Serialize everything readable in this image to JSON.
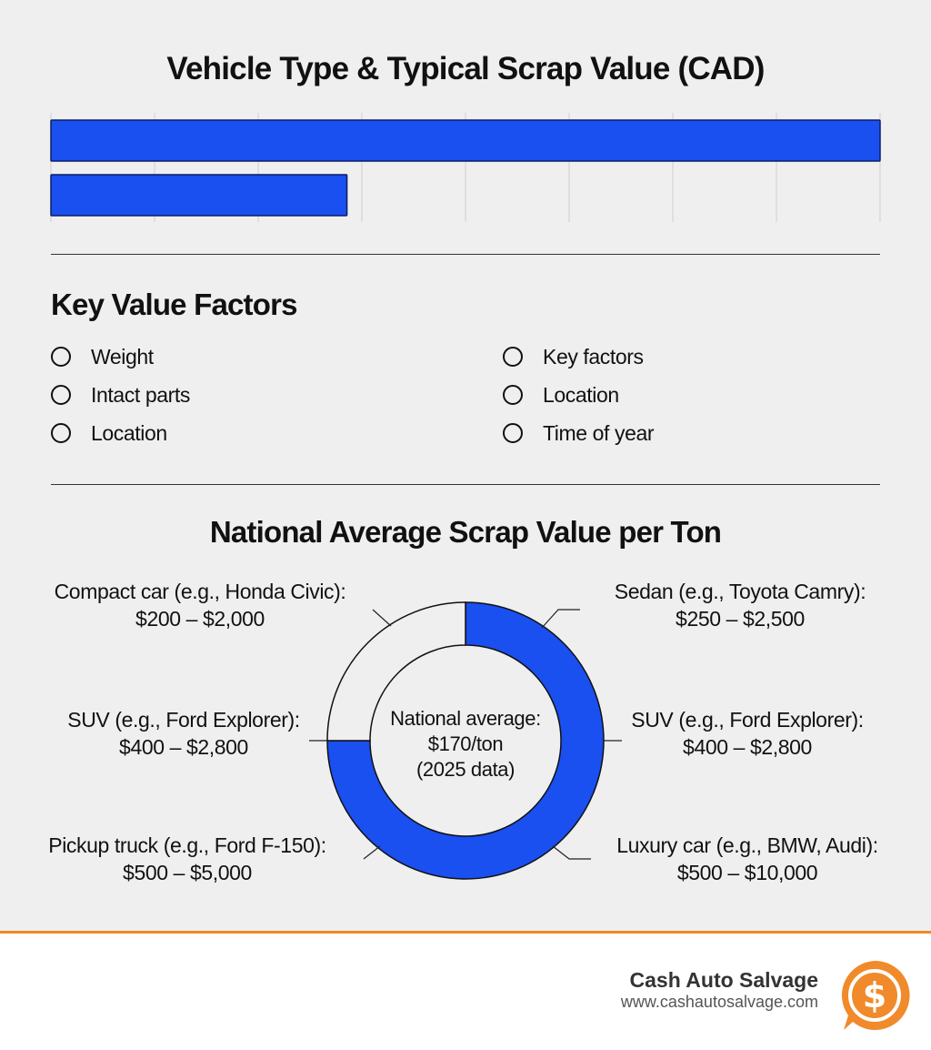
{
  "chart_data": [
    {
      "type": "bar",
      "orientation": "horizontal",
      "title": "Vehicle Type & Typical Scrap Value (CAD)",
      "categories": [
        "",
        ""
      ],
      "values": [
        100,
        35.7
      ],
      "xlim": [
        0,
        100
      ],
      "grid": true,
      "color": "#1a4ff0"
    },
    {
      "type": "pie",
      "style": "donut",
      "title": "National Average Scrap Value per Ton",
      "center_text": [
        "National average:",
        "$170/ton",
        "(2025 data)"
      ],
      "slices": [
        {
          "label": "filled",
          "value": 75,
          "color": "#1a4ff0"
        },
        {
          "label": "empty",
          "value": 25,
          "color": "#efefef"
        }
      ],
      "annotations": [
        {
          "position": "top-left",
          "line1": "Compact car (e.g., Honda Civic):",
          "line2": "$200 – $2,000"
        },
        {
          "position": "middle-left",
          "line1": "SUV (e.g., Ford Explorer):",
          "line2": "$400 – $2,800"
        },
        {
          "position": "bottom-left",
          "line1": "Pickup truck (e.g., Ford F-150):",
          "line2": "$500 – $5,000"
        },
        {
          "position": "top-right",
          "line1": "Sedan (e.g., Toyota Camry):",
          "line2": "$250 – $2,500"
        },
        {
          "position": "middle-right",
          "line1": "SUV (e.g., Ford Explorer):",
          "line2": "$400 – $2,800"
        },
        {
          "position": "bottom-right",
          "line1": "Luxury car (e.g., BMW, Audi):",
          "line2": "$500 – $10,000"
        }
      ]
    }
  ],
  "factors": {
    "heading": "Key Value Factors",
    "left": [
      "Weight",
      "Intact parts",
      "Location"
    ],
    "right": [
      "Key factors",
      "Location",
      "Time of year"
    ]
  },
  "footer": {
    "brand": "Cash Auto Salvage",
    "url": "www.cashautosalvage.com",
    "logo_icon": "dollar-coin-icon",
    "accent_color": "#f08a2a"
  }
}
